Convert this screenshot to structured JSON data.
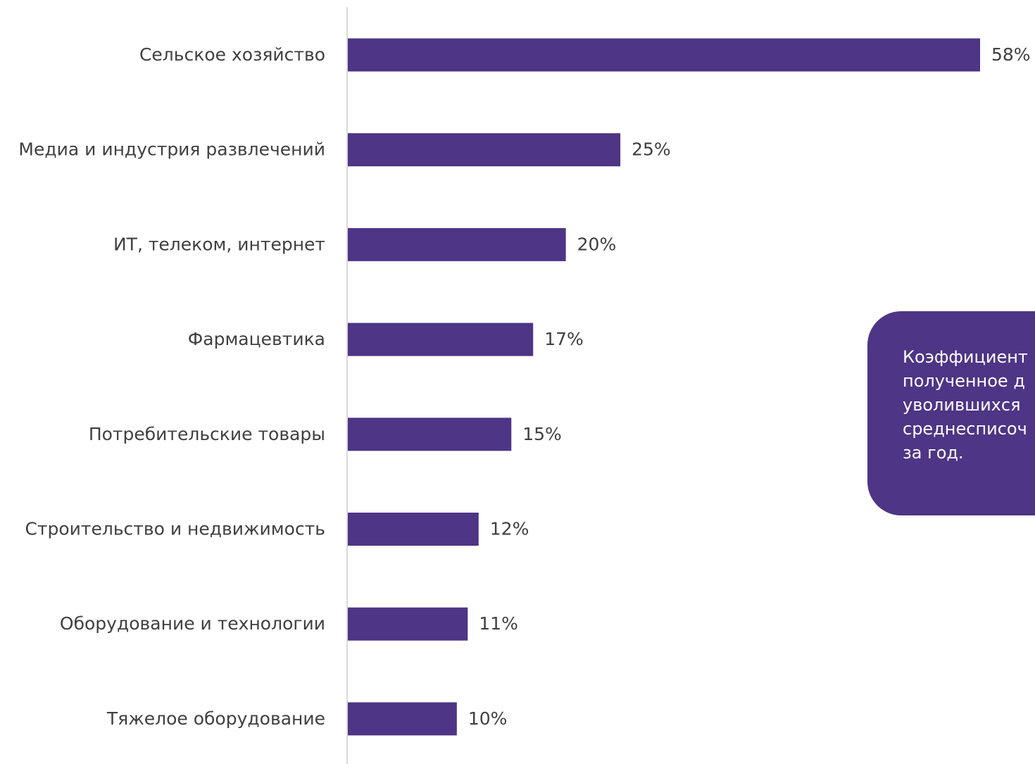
{
  "chart_data": {
    "type": "bar",
    "orientation": "horizontal",
    "title": "",
    "xlabel": "",
    "ylabel": "",
    "categories": [
      "Сельское хозяйство",
      "Медиа и индустрия развлечений",
      "ИТ, телеком, интернет",
      "Фармацевтика",
      "Потребительские товары",
      "Строительство и недвижимость",
      "Оборудование и технологии",
      "Тяжелое оборудование"
    ],
    "values": [
      58,
      25,
      20,
      17,
      15,
      12,
      11,
      10
    ],
    "value_labels": [
      "58%",
      "25%",
      "20%",
      "17%",
      "15%",
      "12%",
      "11%",
      "10%"
    ],
    "unit": "%",
    "xlim": [
      0,
      58
    ],
    "grid": false,
    "legend": "none",
    "bar_color": "#4e3585"
  },
  "callout": {
    "text": "Коэффициент\nполученное д\nуволившихся \nсреднесписоч\nза год.",
    "background_color": "#4e3585",
    "text_color": "#ffffff"
  },
  "colors": {
    "axis_line": "#d9d9d9",
    "label_text": "#404040"
  }
}
